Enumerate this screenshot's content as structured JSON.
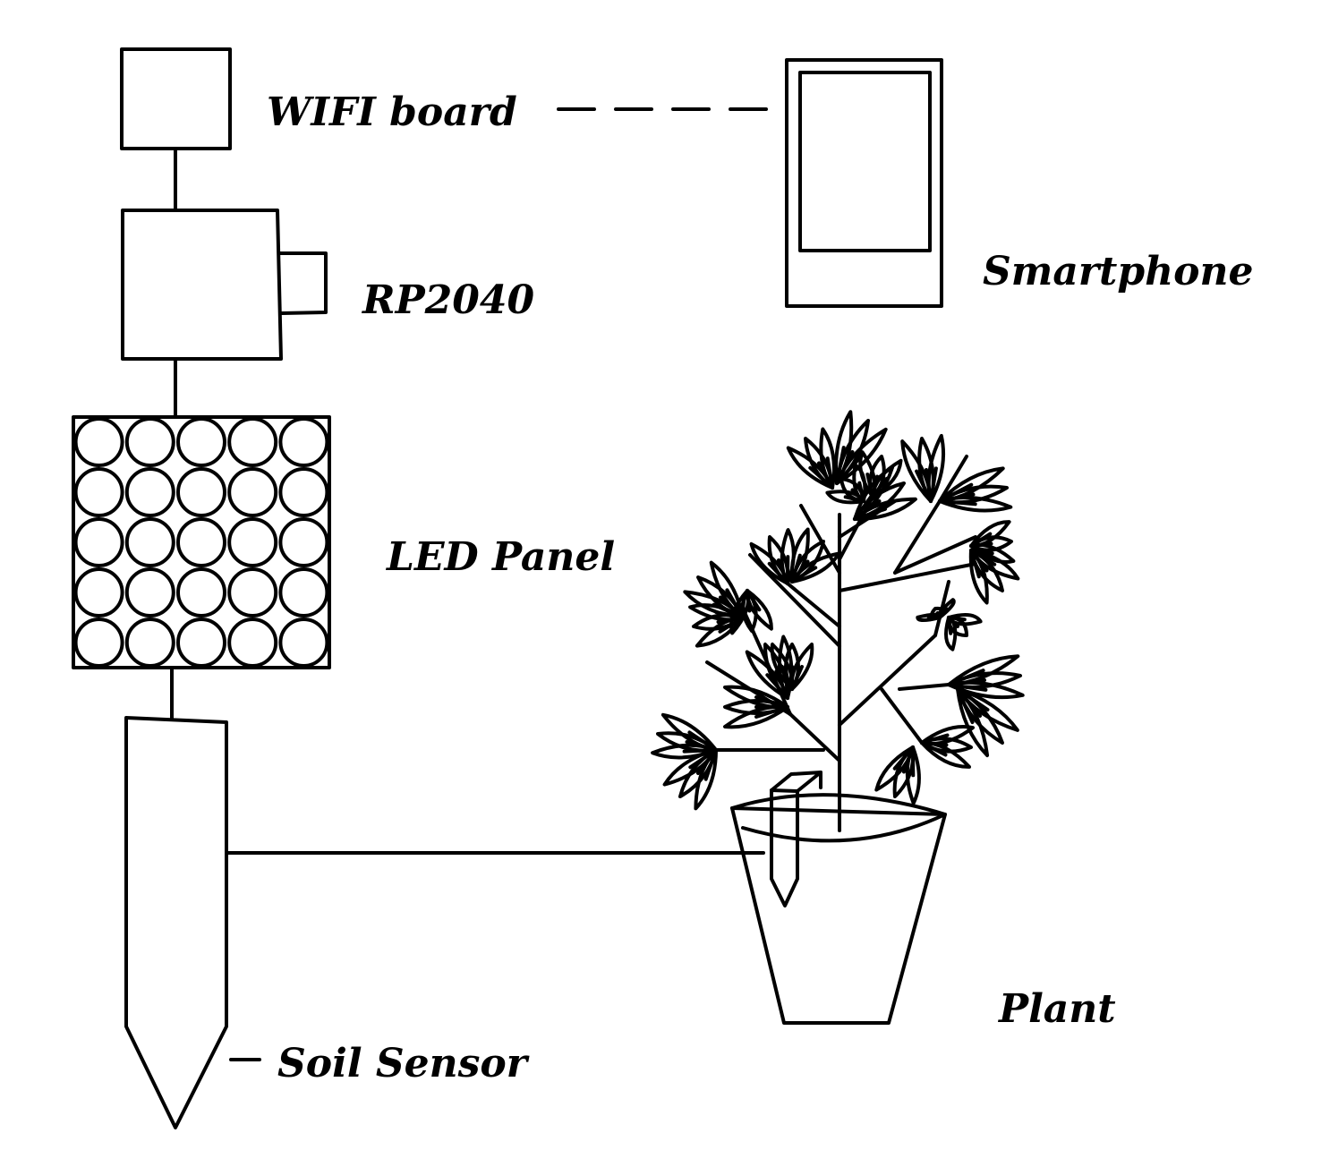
{
  "colors": {
    "ink": "#000000",
    "background": "#ffffff"
  },
  "labels": {
    "wifi_board": "WIFI board",
    "rp2040": "RP2040",
    "led_panel": "LED Panel",
    "soil_sensor": "Soil Sensor",
    "smartphone": "Smartphone",
    "plant": "Plant"
  },
  "led_panel": {
    "rows": 5,
    "cols": 5
  }
}
